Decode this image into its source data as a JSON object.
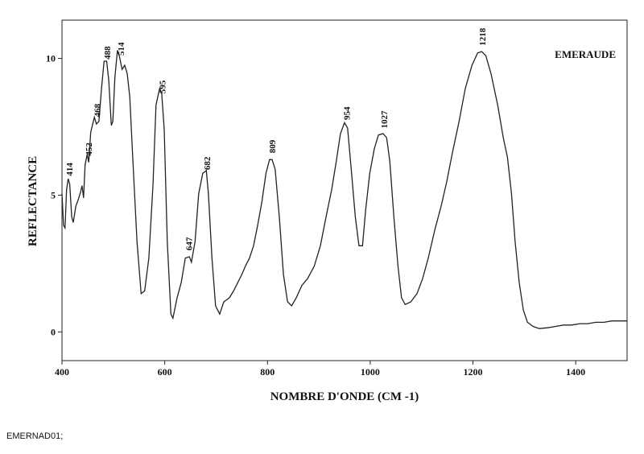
{
  "chart_data": {
    "type": "line",
    "title": "EMERAUDE",
    "x_label": "NOMBRE D'ONDE (CM -1)",
    "y_label": "REFLECTANCE",
    "footnote": "EMERNAD01;",
    "xlim": [
      400,
      1500
    ],
    "ylim": [
      -1.05,
      11.4
    ],
    "xticks": [
      400,
      600,
      800,
      1000,
      1200,
      1400
    ],
    "yticks": [
      0,
      5,
      10
    ],
    "grid": false,
    "series": [
      {
        "color": "#222222",
        "x": [
          400,
          403,
          406,
          409,
          412,
          415,
          419,
          422,
          427,
          431,
          436,
          439,
          442,
          445,
          449,
          452,
          456,
          463,
          467,
          472,
          477,
          482,
          487,
          491,
          496,
          499,
          503,
          508,
          512,
          517,
          522,
          527,
          532,
          538,
          546,
          554,
          561,
          569,
          577,
          583,
          590,
          594,
          599,
          605,
          612,
          616,
          624,
          632,
          640,
          648,
          652,
          659,
          666,
          674,
          681,
          685,
          692,
          699,
          707,
          715,
          726,
          734,
          742,
          750,
          757,
          765,
          773,
          781,
          789,
          797,
          804,
          809,
          815,
          823,
          831,
          839,
          847,
          856,
          867,
          878,
          891,
          903,
          914,
          925,
          934,
          942,
          950,
          956,
          963,
          971,
          978,
          985,
          991,
          999,
          1008,
          1016,
          1025,
          1032,
          1038,
          1046,
          1054,
          1061,
          1068,
          1079,
          1091,
          1102,
          1113,
          1126,
          1138,
          1149,
          1160,
          1173,
          1185,
          1198,
          1209,
          1217,
          1225,
          1235,
          1248,
          1259,
          1267,
          1275,
          1282,
          1290,
          1298,
          1306,
          1317,
          1329,
          1345,
          1361,
          1376,
          1392,
          1408,
          1423,
          1439,
          1455,
          1470,
          1486,
          1500
        ],
        "values": [
          5.06,
          3.9,
          3.8,
          5.2,
          5.6,
          5.4,
          4.2,
          4.0,
          4.6,
          4.8,
          5.1,
          5.35,
          4.9,
          6.1,
          6.5,
          6.2,
          7.3,
          7.85,
          7.6,
          7.7,
          8.9,
          9.9,
          9.9,
          9.2,
          7.55,
          7.7,
          9.3,
          10.3,
          10.05,
          9.6,
          9.75,
          9.45,
          8.6,
          6.25,
          3.3,
          1.4,
          1.5,
          2.7,
          5.35,
          8.3,
          8.9,
          8.75,
          7.4,
          3.3,
          0.65,
          0.5,
          1.25,
          1.8,
          2.7,
          2.75,
          2.55,
          3.3,
          5.05,
          5.8,
          5.9,
          5.05,
          2.7,
          0.95,
          0.65,
          1.1,
          1.25,
          1.5,
          1.8,
          2.1,
          2.4,
          2.7,
          3.15,
          3.9,
          4.75,
          5.8,
          6.3,
          6.3,
          5.95,
          4.2,
          2.1,
          1.1,
          0.95,
          1.25,
          1.7,
          1.95,
          2.4,
          3.15,
          4.2,
          5.2,
          6.25,
          7.25,
          7.65,
          7.45,
          5.95,
          4.2,
          3.15,
          3.15,
          4.45,
          5.8,
          6.7,
          7.2,
          7.25,
          7.1,
          6.25,
          4.2,
          2.4,
          1.25,
          1.0,
          1.1,
          1.4,
          1.95,
          2.7,
          3.75,
          4.6,
          5.5,
          6.55,
          7.7,
          8.9,
          9.75,
          10.2,
          10.25,
          10.1,
          9.45,
          8.3,
          7.1,
          6.4,
          5.05,
          3.3,
          1.8,
          0.8,
          0.35,
          0.2,
          0.12,
          0.15,
          0.2,
          0.25,
          0.25,
          0.3,
          0.3,
          0.35,
          0.35,
          0.4,
          0.4,
          0.4
        ]
      }
    ],
    "peaks": [
      414,
      452,
      468,
      488,
      514,
      595,
      647,
      682,
      809,
      954,
      1027,
      1218
    ]
  }
}
